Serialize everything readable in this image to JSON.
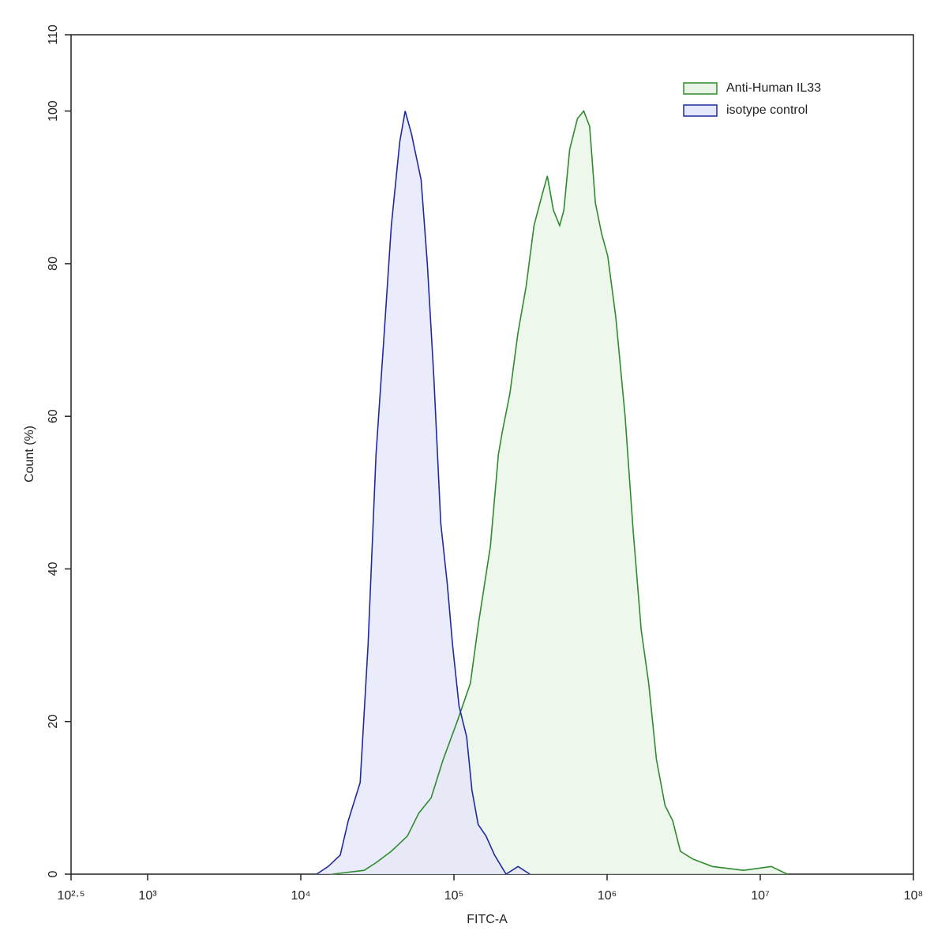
{
  "chart_data": {
    "type": "histogram-overlay",
    "xlabel": "FITC-A",
    "ylabel": "Count  (%)",
    "xscale": "log",
    "xlim": [
      316.23,
      100000000
    ],
    "ylim": [
      0,
      110
    ],
    "xticks": [
      {
        "value": 316.23,
        "label": "10²·⁵"
      },
      {
        "value": 1000,
        "label": "10³"
      },
      {
        "value": 10000,
        "label": "10⁴"
      },
      {
        "value": 100000,
        "label": "10⁵"
      },
      {
        "value": 1000000,
        "label": "10⁶"
      },
      {
        "value": 10000000,
        "label": "10⁷"
      },
      {
        "value": 100000000,
        "label": "10⁸"
      }
    ],
    "yticks": [
      0,
      20,
      40,
      60,
      80,
      100,
      110
    ],
    "legend": "upper right",
    "series": [
      {
        "name": "Anti-Human IL33",
        "color": "#2e8b2e",
        "fill": "#e8f4e6",
        "x": [
          16100,
          25900,
          31000,
          39000,
          49700,
          59000,
          71000,
          85000,
          105000,
          128000,
          145000,
          173000,
          195000,
          207000,
          232000,
          262000,
          296000,
          333000,
          376000,
          407000,
          446000,
          490000,
          522000,
          570000,
          640000,
          704000,
          769000,
          838000,
          919000,
          1010000,
          1140000,
          1310000,
          1480000,
          1670000,
          1870000,
          2100000,
          2390000,
          2680000,
          3010000,
          3610000,
          4860000,
          7780000,
          11800000,
          15000000
        ],
        "values": [
          0,
          0.5,
          1.5,
          3,
          5,
          8,
          10,
          15,
          20,
          25,
          33,
          43,
          55,
          58,
          63,
          71,
          77,
          85,
          89,
          91.5,
          87,
          85,
          87,
          95,
          99,
          100,
          98,
          88,
          84,
          81,
          73,
          60,
          45,
          32,
          25,
          15,
          9,
          7,
          3,
          2,
          1,
          0.5,
          1,
          0
        ]
      },
      {
        "name": "isotype control",
        "color": "#1f2a9a",
        "fill": "#e4e6fa",
        "x": [
          12700,
          15100,
          18100,
          20400,
          24400,
          27500,
          31000,
          34800,
          39000,
          44300,
          48000,
          52800,
          61000,
          67000,
          74000,
          82000,
          90500,
          98000,
          108000,
          121000,
          131000,
          144000,
          162000,
          184000,
          219000,
          262000,
          313000
        ],
        "values": [
          0,
          1,
          2.5,
          7,
          12,
          30,
          55,
          70,
          85,
          96,
          100,
          97,
          91,
          80,
          65,
          46,
          38,
          30,
          22,
          18,
          11,
          6.5,
          5,
          2.5,
          0,
          1,
          0
        ]
      }
    ]
  }
}
